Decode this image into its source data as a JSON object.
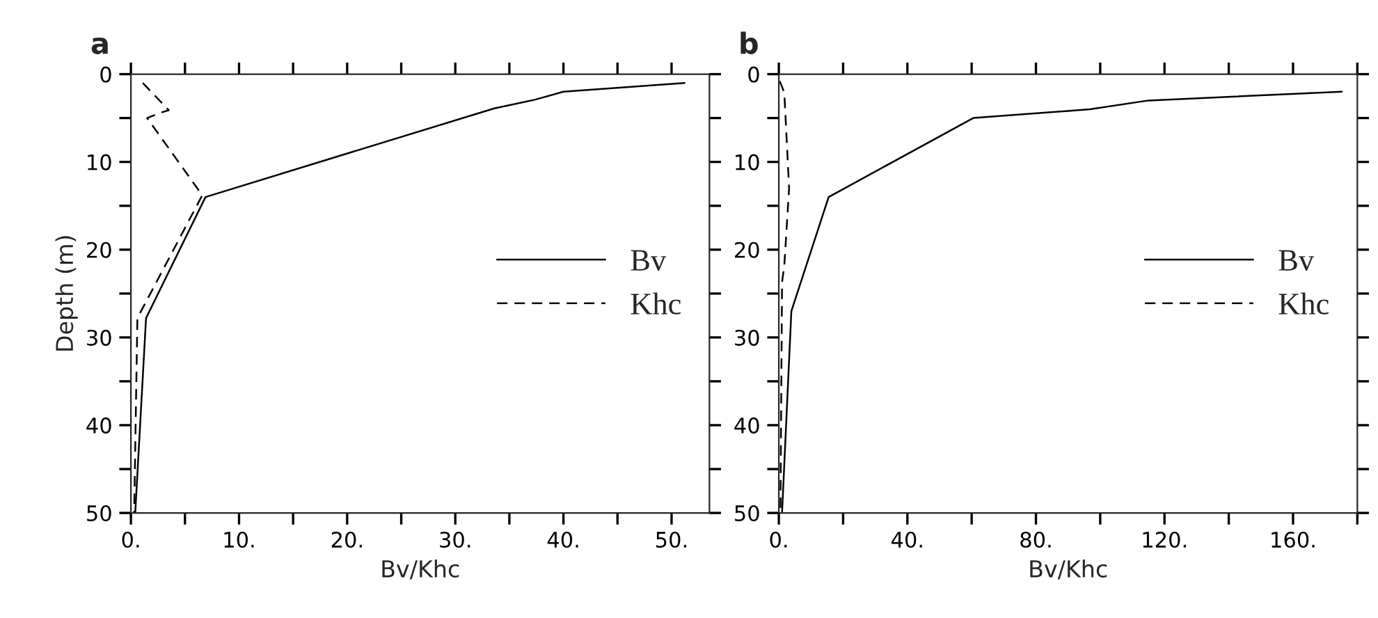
{
  "chart_data": [
    {
      "type": "line",
      "title": "a",
      "xlabel": "Bv/Khc",
      "ylabel": "Depth (m)",
      "xlim": [
        0,
        53.5
      ],
      "ylim": [
        50,
        0
      ],
      "xticks": [
        {
          "value": 0,
          "label": "0."
        },
        {
          "value": 5,
          "label": null
        },
        {
          "value": 10,
          "label": "10."
        },
        {
          "value": 15,
          "label": null
        },
        {
          "value": 20,
          "label": "20."
        },
        {
          "value": 25,
          "label": null
        },
        {
          "value": 30,
          "label": "30."
        },
        {
          "value": 35,
          "label": null
        },
        {
          "value": 40,
          "label": "40."
        },
        {
          "value": 45,
          "label": null
        },
        {
          "value": 50,
          "label": "50."
        }
      ],
      "yticks": [
        0,
        {
          "value": 5,
          "label": null
        },
        10,
        {
          "value": 15,
          "label": null
        },
        20,
        {
          "value": 25,
          "label": null
        },
        30,
        {
          "value": 35,
          "label": null
        },
        40,
        {
          "value": 45,
          "label": null
        },
        50
      ],
      "grid": false,
      "legend": "right",
      "marker": "none",
      "series": [
        {
          "name": "Bv",
          "color": "#000000",
          "line_style": "solid",
          "x": [
            51.2,
            40,
            37.4,
            33.6,
            6.9,
            1.4,
            0.4
          ],
          "values": [
            1,
            2,
            2.9,
            3.9,
            14,
            27.8,
            50
          ]
        },
        {
          "name": "Khc",
          "color": "#000000",
          "line_style": "dashed",
          "x": [
            1.1,
            3.5,
            2.5,
            1.5,
            6.6,
            0.6,
            0.3
          ],
          "values": [
            1,
            4.1,
            4.5,
            5,
            13.8,
            27.8,
            50
          ]
        }
      ]
    },
    {
      "type": "line",
      "title": "b",
      "xlabel": "Bv/Khc",
      "xlim": [
        0,
        180
      ],
      "ylim": [
        50,
        0
      ],
      "xticks": [
        {
          "value": 0,
          "label": "0."
        },
        {
          "value": 20,
          "label": null
        },
        {
          "value": 40,
          "label": "40."
        },
        {
          "value": 60,
          "label": null
        },
        {
          "value": 80,
          "label": "80."
        },
        {
          "value": 100,
          "label": null
        },
        {
          "value": 120,
          "label": "120."
        },
        {
          "value": 140,
          "label": null
        },
        {
          "value": 160,
          "label": "160."
        },
        {
          "value": 180,
          "label": null
        }
      ],
      "yticks": [
        0,
        {
          "value": 5,
          "label": null
        },
        10,
        {
          "value": 15,
          "label": null
        },
        20,
        {
          "value": 25,
          "label": null
        },
        30,
        {
          "value": 35,
          "label": null
        },
        40,
        {
          "value": 45,
          "label": null
        },
        50
      ],
      "grid": false,
      "legend": "right",
      "marker": "none",
      "series": [
        {
          "name": "Bv",
          "color": "#000000",
          "line_style": "solid",
          "x": [
            175.2,
            115,
            96.8,
            60.5,
            15.5,
            3.9,
            1.0
          ],
          "values": [
            2,
            3,
            4,
            5,
            14,
            27,
            50
          ]
        },
        {
          "name": "Khc",
          "color": "#000000",
          "line_style": "dashed",
          "x": [
            0.3,
            1.7,
            3.2,
            1.7,
            1.0,
            0.5
          ],
          "values": [
            0.8,
            2.1,
            13,
            21.8,
            23.7,
            50
          ]
        }
      ]
    }
  ]
}
